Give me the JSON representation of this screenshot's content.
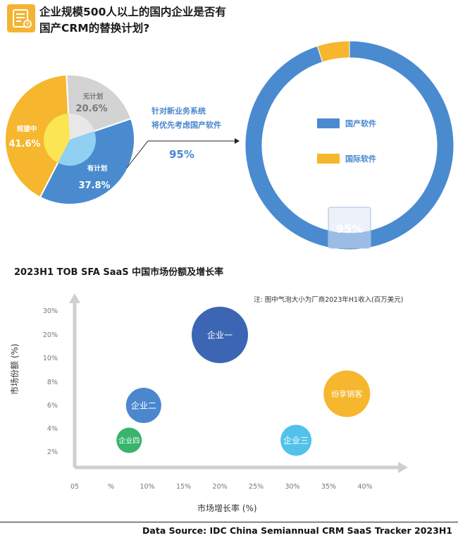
{
  "header": {
    "title_line1": "企业规模500人以上的国内企业是否有",
    "title_line2": "国产CRM的替换计划?"
  },
  "pie": {
    "slices": [
      {
        "label": "规望中",
        "value": 41.6,
        "value_text": "41.6%",
        "color": "#f6b62e"
      },
      {
        "label": "无计划",
        "value": 20.6,
        "value_text": "20.6%",
        "color": "#d3d3d3"
      },
      {
        "label": "有计划",
        "value": 37.8,
        "value_text": "37.8%",
        "color": "#4a8bd0"
      }
    ],
    "inner_colors": {
      "规望中": "#fbe552",
      "无计划": "#e8e8e8",
      "有计划": "#90d0f2"
    }
  },
  "callout": {
    "line1": "针对新业务系统",
    "line2": "将优先考虑国产软件",
    "value": "95%"
  },
  "donut": {
    "slices": [
      {
        "label": "国产软件",
        "value": 95,
        "color": "#4a8bd0"
      },
      {
        "label": "国际软件",
        "value": 5,
        "color": "#f6b62e"
      }
    ],
    "highlight_text": "95%"
  },
  "chart_data": {
    "type": "scatter",
    "title": "2023H1 TOB SFA SaaS 中国市场份额及增长率",
    "note": "注: 图中气泡大小为厂商2023年H1收入(百万美元)",
    "xlabel": "市场增长率 (%)",
    "ylabel": "市场份额 (%)",
    "x_ticks": [
      "05",
      "%",
      "10%",
      "15%",
      "20%",
      "25%",
      "30%",
      "35%",
      "40%"
    ],
    "y_ticks": [
      "2%",
      "4%",
      "6%",
      "8%",
      "10%",
      "20%",
      "30%"
    ],
    "points": [
      {
        "name": "企业一",
        "x": 20,
        "y": 20,
        "color": "#3c66b4"
      },
      {
        "name": "企业二",
        "x": 9.5,
        "y": 6,
        "color": "#4a87cf"
      },
      {
        "name": "企业三",
        "x": 30.5,
        "y": 3,
        "color": "#52c2ea"
      },
      {
        "name": "企业四",
        "x": 7.5,
        "y": 3,
        "color": "#38b46c"
      },
      {
        "name": "纷享销客",
        "x": 37.5,
        "y": 7,
        "color": "#f6b62e"
      }
    ]
  },
  "source": "Data Source: IDC China Semiannual CRM SaaS Tracker 2023H1"
}
